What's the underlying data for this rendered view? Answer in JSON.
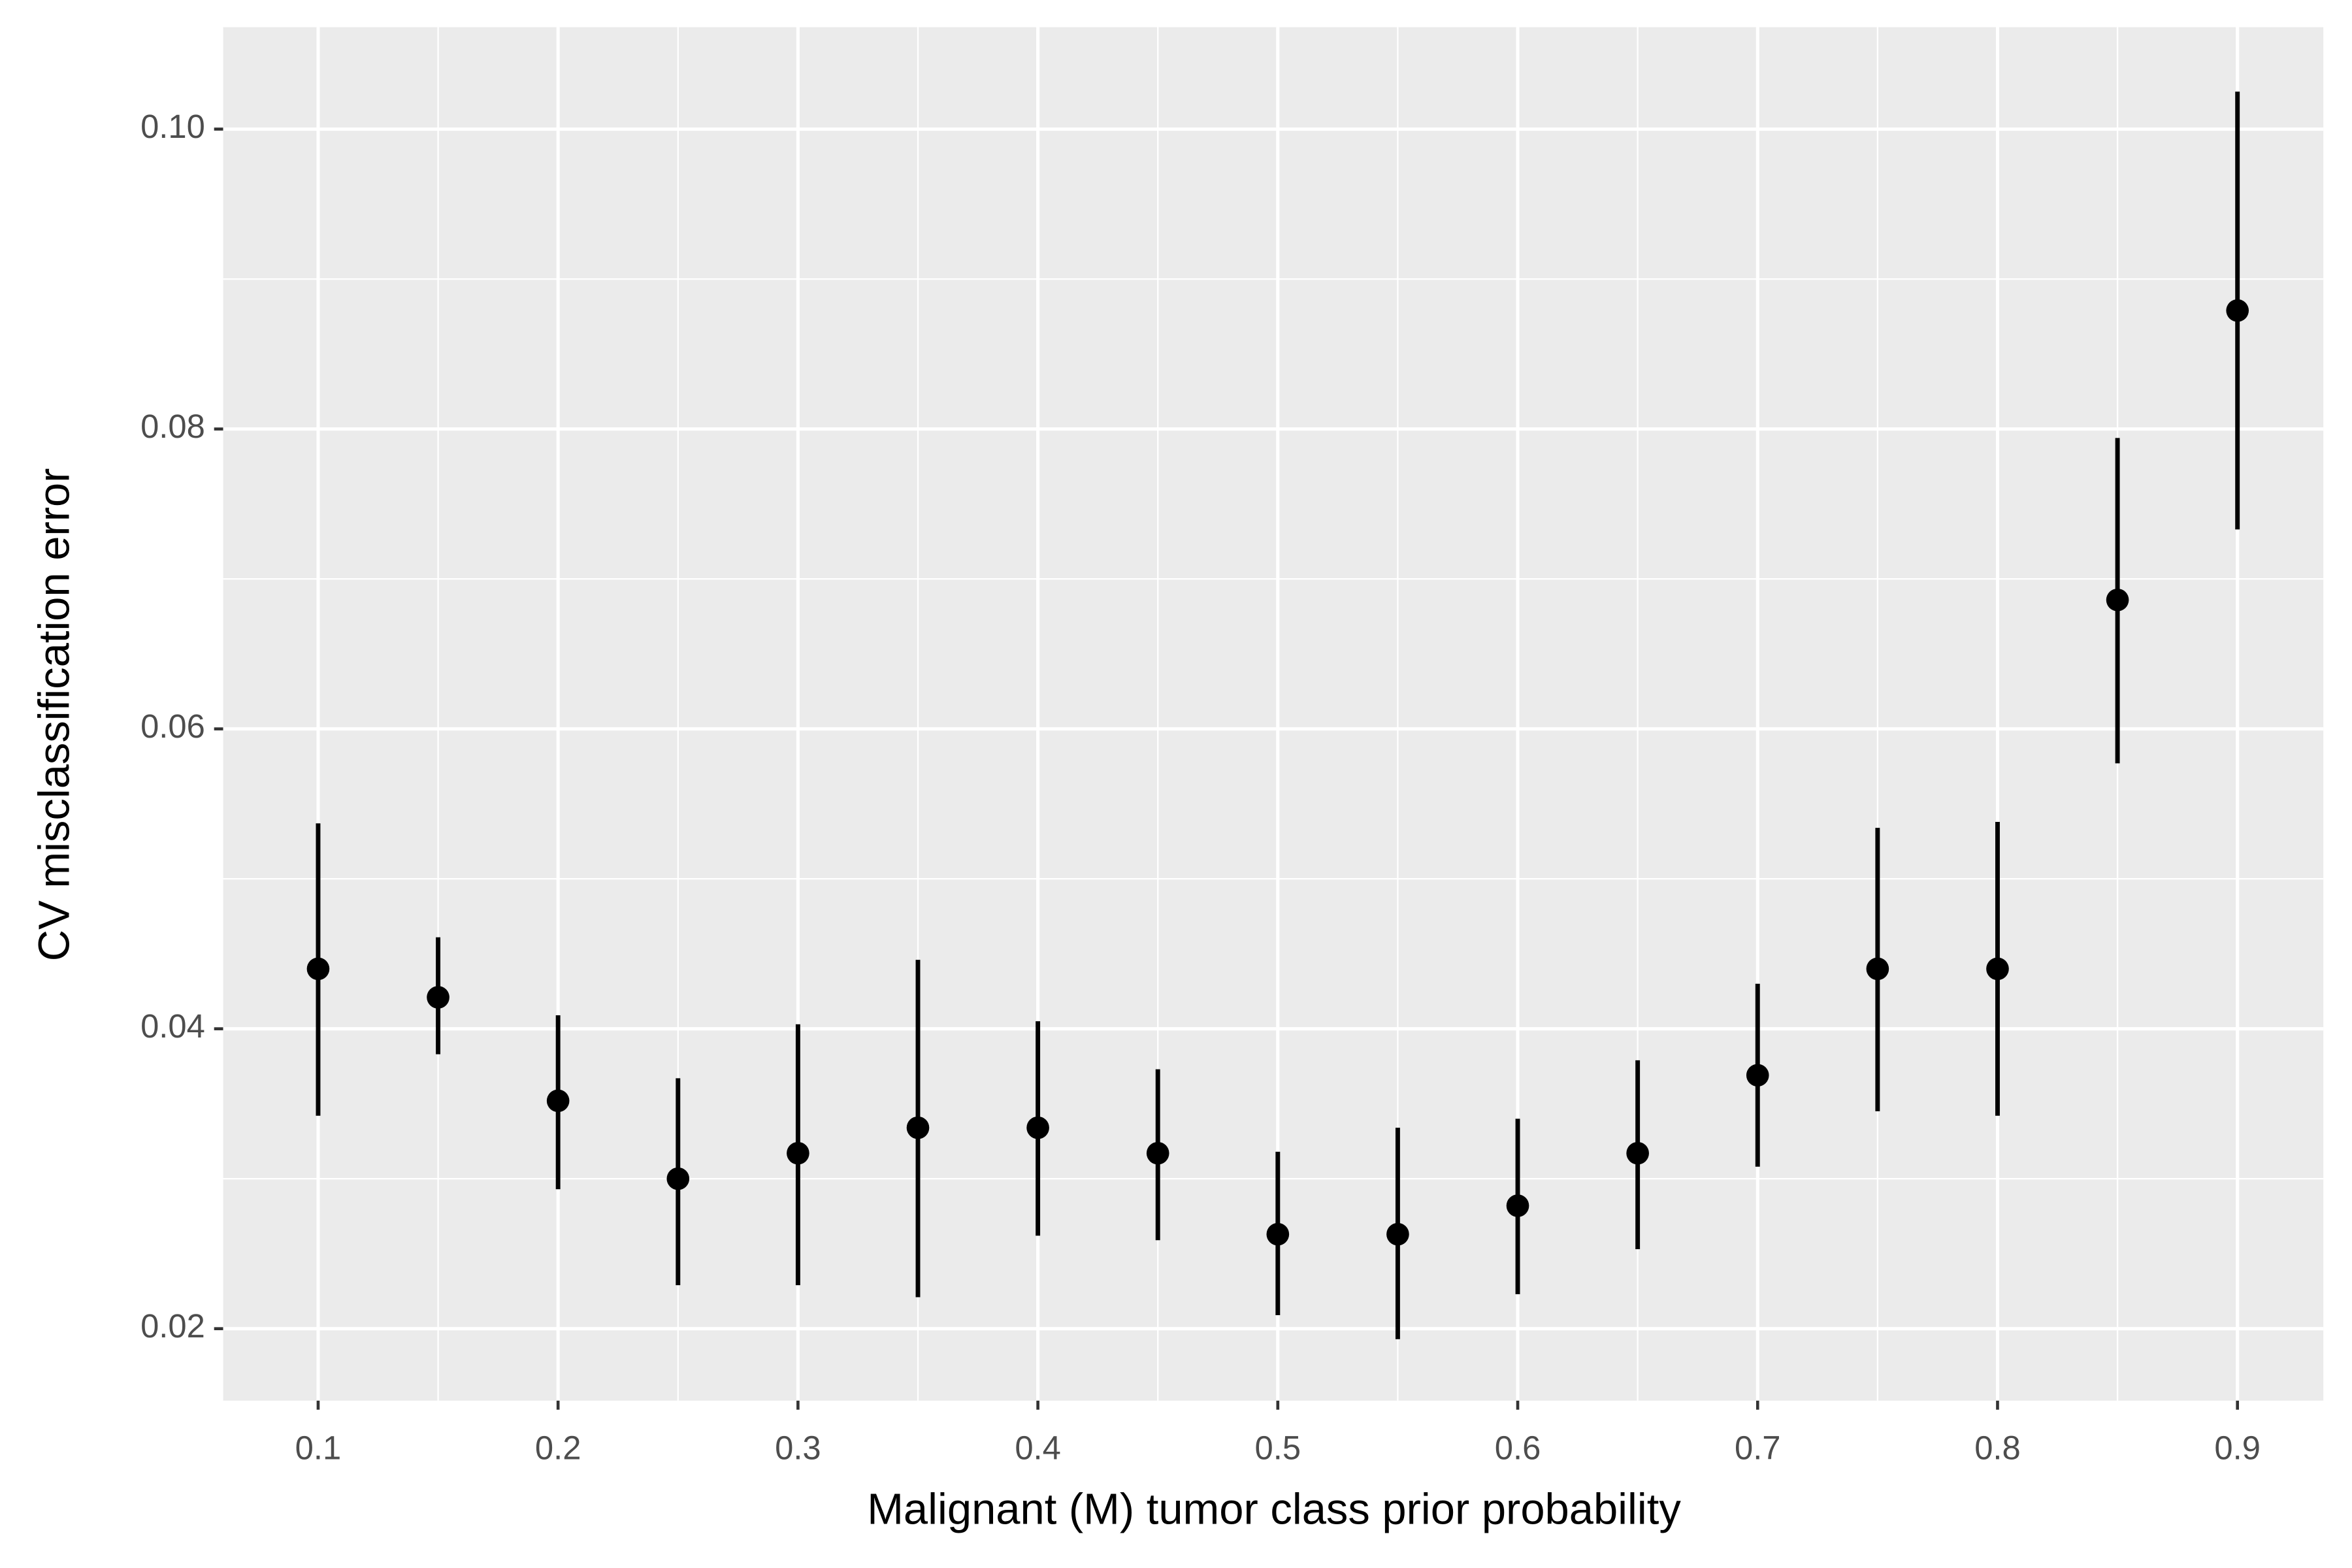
{
  "chart_data": {
    "type": "errorbar",
    "x_label": "Malignant (M) tumor class prior probability",
    "y_label": "CV misclassification error",
    "x": [
      0.1,
      0.15,
      0.2,
      0.25,
      0.3,
      0.35,
      0.4,
      0.45,
      0.5,
      0.55,
      0.6,
      0.65,
      0.7,
      0.75,
      0.8,
      0.85,
      0.9
    ],
    "values": [
      0.044,
      0.0421,
      0.0352,
      0.03,
      0.0317,
      0.0334,
      0.0334,
      0.0317,
      0.0263,
      0.0263,
      0.0282,
      0.0317,
      0.0369,
      0.044,
      0.044,
      0.0686,
      0.0879
    ],
    "ymin": [
      0.0342,
      0.0383,
      0.0293,
      0.0229,
      0.0229,
      0.0221,
      0.0262,
      0.0259,
      0.0209,
      0.0193,
      0.0223,
      0.0253,
      0.0308,
      0.0345,
      0.0342,
      0.0577,
      0.0733
    ],
    "ymax": [
      0.0537,
      0.0461,
      0.0409,
      0.0367,
      0.0403,
      0.0446,
      0.0405,
      0.0373,
      0.0318,
      0.0334,
      0.034,
      0.0379,
      0.043,
      0.0534,
      0.0538,
      0.0794,
      0.1025
    ],
    "color": "#000000",
    "xlim": [
      0.0604,
      0.9358
    ],
    "ylim": [
      0.0152,
      0.1068
    ],
    "xticks": [
      0.1,
      0.2,
      0.3,
      0.4,
      0.5,
      0.6,
      0.7,
      0.8,
      0.9
    ],
    "yticks": [
      0.02,
      0.04,
      0.06,
      0.08,
      {
        "value": 0.1,
        "label": "0.10"
      }
    ],
    "grid": true,
    "minor_grid": true
  }
}
